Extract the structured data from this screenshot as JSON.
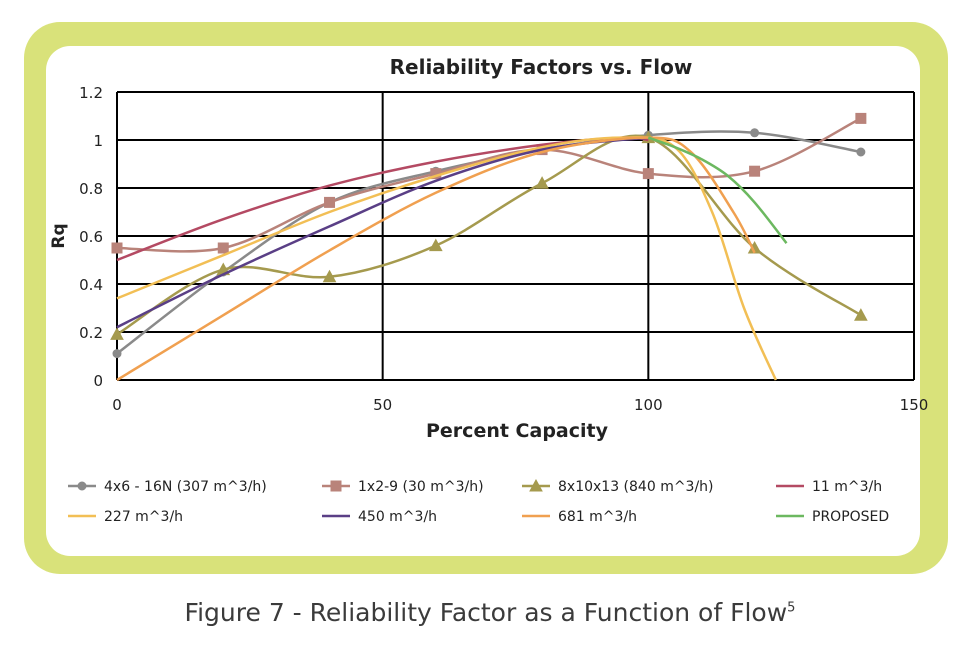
{
  "caption": {
    "text": "Figure 7 - Reliability Factor as a Function of Flow",
    "superscript": "5"
  },
  "colors": {
    "frame": "#d9e27a",
    "grid": "#000000"
  },
  "chart_data": {
    "type": "line",
    "title": "Reliability Factors vs. Flow",
    "xlabel": "Percent Capacity",
    "ylabel": "Rq",
    "xlim": [
      0,
      150
    ],
    "ylim": [
      0,
      1.2
    ],
    "xticks": [
      "0",
      "50",
      "100",
      "150"
    ],
    "yticks": [
      "0",
      "0.2",
      "0.4",
      "0.6",
      "0.8",
      "1",
      "1.2"
    ],
    "grid": "horizontal and vertical major gridlines",
    "legend_position": "bottom",
    "series": [
      {
        "name": "4x6 - 16N (307 m^3/h)",
        "color": "#8a8a8a",
        "marker": "circle",
        "points": [
          [
            0,
            0.11
          ],
          [
            20,
            0.45
          ],
          [
            40,
            0.74
          ],
          [
            60,
            0.87
          ],
          [
            80,
            0.96
          ],
          [
            100,
            1.02
          ],
          [
            120,
            1.03
          ],
          [
            140,
            0.95
          ]
        ]
      },
      {
        "name": "1x2-9 (30 m^3/h)",
        "color": "#b9837a",
        "marker": "square",
        "points": [
          [
            0,
            0.55
          ],
          [
            20,
            0.55
          ],
          [
            40,
            0.74
          ],
          [
            60,
            0.86
          ],
          [
            80,
            0.96
          ],
          [
            100,
            0.86
          ],
          [
            120,
            0.87
          ],
          [
            140,
            1.09
          ]
        ]
      },
      {
        "name": "8x10x13 (840 m^3/h)",
        "color": "#a59a4e",
        "marker": "triangle",
        "points": [
          [
            0,
            0.19
          ],
          [
            20,
            0.46
          ],
          [
            40,
            0.43
          ],
          [
            60,
            0.56
          ],
          [
            80,
            0.82
          ],
          [
            100,
            1.01
          ],
          [
            120,
            0.55
          ],
          [
            140,
            0.27
          ]
        ]
      },
      {
        "name": "11 m^3/h",
        "color": "#b44a63",
        "marker": "none",
        "points": [
          [
            0,
            0.5
          ],
          [
            20,
            0.67
          ],
          [
            40,
            0.81
          ],
          [
            60,
            0.91
          ],
          [
            80,
            0.98
          ],
          [
            95,
            1.01
          ],
          [
            100,
            1.0
          ]
        ]
      },
      {
        "name": "227 m^3/h",
        "color": "#f2bf55",
        "marker": "none",
        "points": [
          [
            0,
            0.34
          ],
          [
            20,
            0.52
          ],
          [
            40,
            0.7
          ],
          [
            60,
            0.85
          ],
          [
            80,
            0.97
          ],
          [
            95,
            1.01
          ],
          [
            105,
            0.97
          ],
          [
            112,
            0.7
          ],
          [
            118,
            0.3
          ],
          [
            124,
            0.0
          ]
        ]
      },
      {
        "name": "450 m^3/h",
        "color": "#5a3f86",
        "marker": "none",
        "points": [
          [
            0,
            0.22
          ],
          [
            20,
            0.44
          ],
          [
            40,
            0.64
          ],
          [
            60,
            0.83
          ],
          [
            80,
            0.96
          ],
          [
            100,
            1.01
          ]
        ]
      },
      {
        "name": "681 m^3/h",
        "color": "#f0a050",
        "marker": "none",
        "points": [
          [
            0,
            0.0
          ],
          [
            20,
            0.27
          ],
          [
            40,
            0.54
          ],
          [
            60,
            0.78
          ],
          [
            80,
            0.95
          ],
          [
            100,
            1.01
          ],
          [
            108,
            0.95
          ],
          [
            116,
            0.7
          ],
          [
            120,
            0.53
          ]
        ]
      },
      {
        "name": "PROPOSED",
        "color": "#6cb860",
        "marker": "none",
        "points": [
          [
            100,
            1.01
          ],
          [
            105,
            0.97
          ],
          [
            110,
            0.92
          ],
          [
            115,
            0.85
          ],
          [
            120,
            0.74
          ],
          [
            126,
            0.57
          ]
        ]
      }
    ]
  }
}
